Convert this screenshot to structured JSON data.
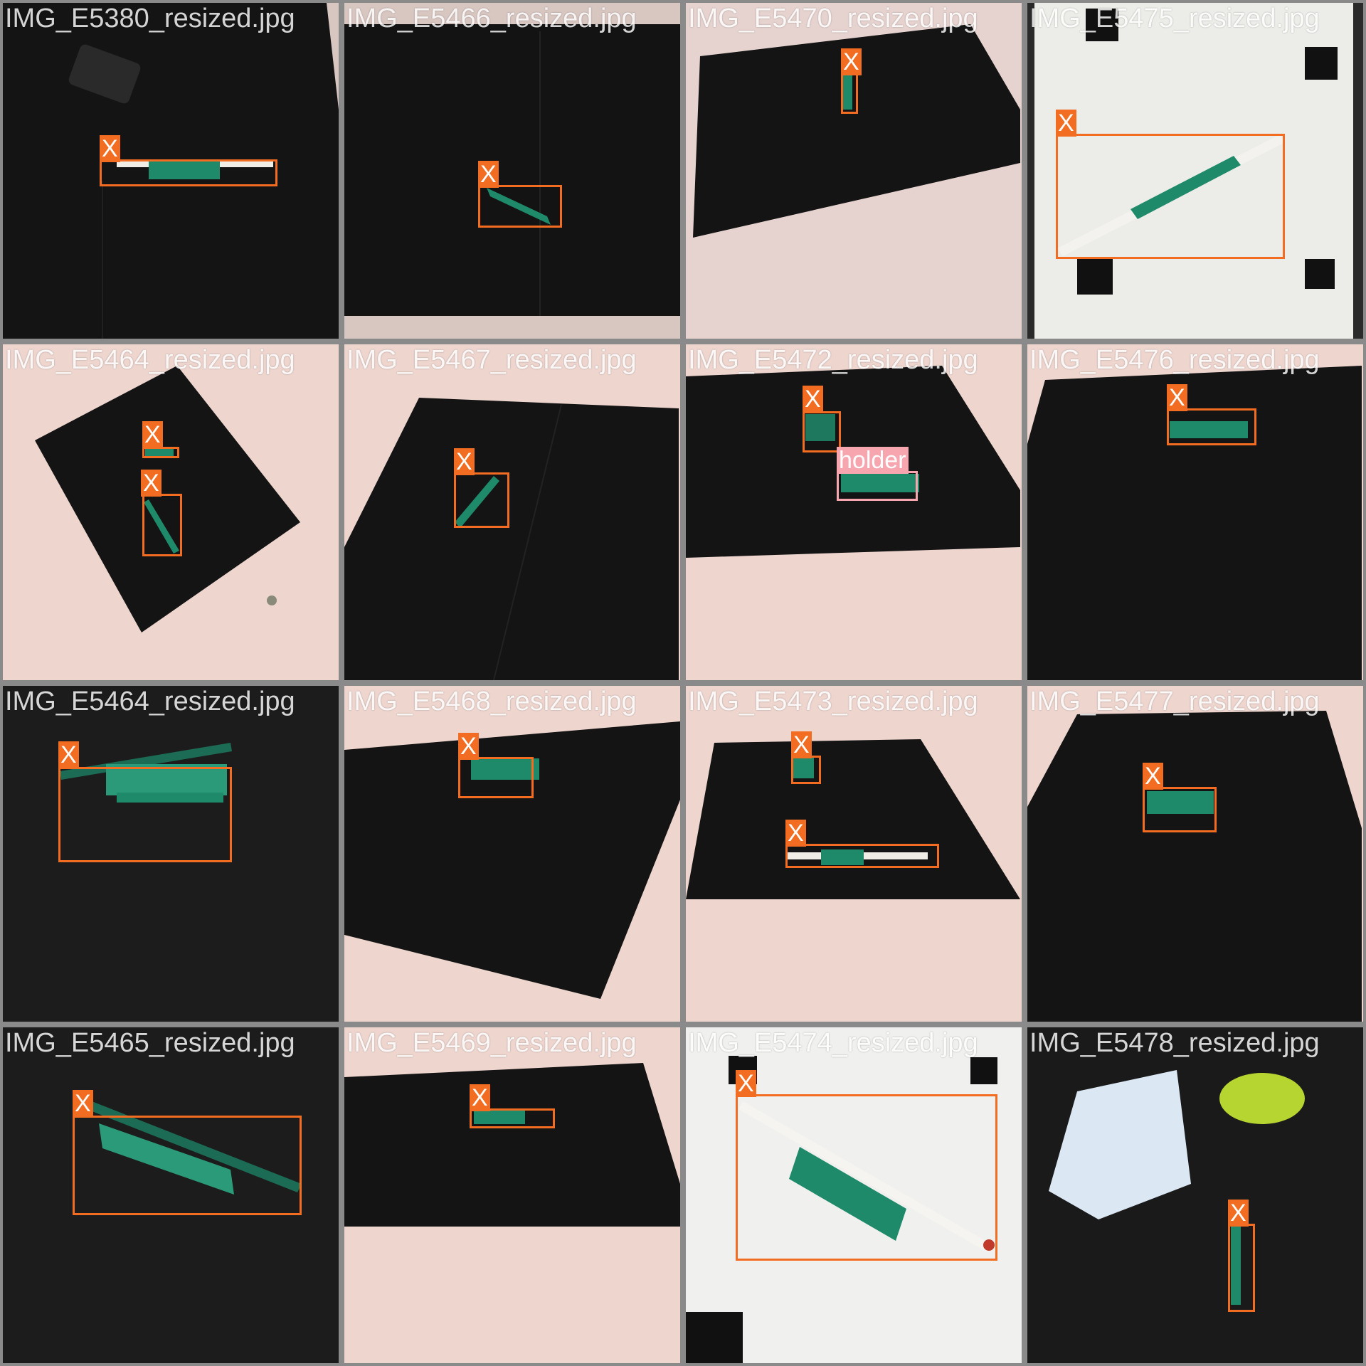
{
  "colors": {
    "box_x": "#f26d21",
    "box_holder": "#f7a6b0",
    "felt": "#151515",
    "background_sheet": "#e6d3cf",
    "holder_green": "#1f8a6a",
    "grid_gap": "#8a8a8a"
  },
  "tiles": [
    {
      "file": "IMG_E5380_resized.jpg",
      "labels": [
        "X"
      ]
    },
    {
      "file": "IMG_E5466_resized.jpg",
      "labels": [
        "X"
      ]
    },
    {
      "file": "IMG_E5470_resized.jpg",
      "labels": [
        "X"
      ]
    },
    {
      "file": "IMG_E5475_resized.jpg",
      "labels": [
        "X"
      ]
    },
    {
      "file": "IMG_E5464_resized.jpg",
      "labels": [
        "X",
        "X"
      ]
    },
    {
      "file": "IMG_E5467_resized.jpg",
      "labels": [
        "X"
      ]
    },
    {
      "file": "IMG_E5472_resized.jpg",
      "labels": [
        "X",
        "holder"
      ]
    },
    {
      "file": "IMG_E5476_resized.jpg",
      "labels": [
        "X"
      ]
    },
    {
      "file": "IMG_E5464_resized.jpg",
      "labels": [
        "X"
      ]
    },
    {
      "file": "IMG_E5468_resized.jpg",
      "labels": [
        "X"
      ]
    },
    {
      "file": "IMG_E5473_resized.jpg",
      "labels": [
        "X",
        "X"
      ]
    },
    {
      "file": "IMG_E5477_resized.jpg",
      "labels": [
        "X"
      ]
    },
    {
      "file": "IMG_E5465_resized.jpg",
      "labels": [
        "X"
      ]
    },
    {
      "file": "IMG_E5469_resized.jpg",
      "labels": [
        "X"
      ]
    },
    {
      "file": "IMG_E5474_resized.jpg",
      "labels": [
        "X"
      ]
    },
    {
      "file": "IMG_E5478_resized.jpg",
      "labels": [
        "X"
      ]
    }
  ]
}
